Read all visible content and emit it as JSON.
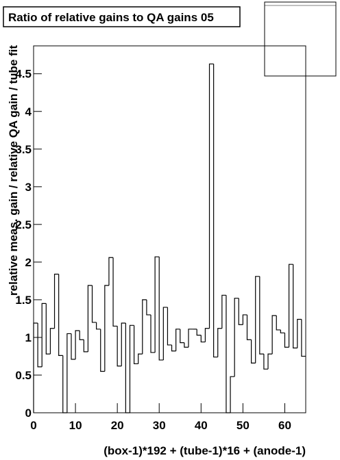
{
  "chart_data": {
    "type": "histogram",
    "title": "Ratio of relative gains to QA gains 05",
    "x_label": "(box-1)*192 + (tube-1)*16 + (anode-1)",
    "y_label": "relative meas. gain / relative QA gain / tube fit",
    "bins": [
      0,
      1,
      2,
      3,
      4,
      5,
      6,
      7,
      8,
      9,
      10,
      11,
      12,
      13,
      14,
      15,
      16,
      17,
      18,
      19,
      20,
      21,
      22,
      23,
      24,
      25,
      26,
      27,
      28,
      29,
      30,
      31,
      32,
      33,
      34,
      35,
      36,
      37,
      38,
      39,
      40,
      41,
      42,
      43,
      44,
      45,
      46,
      47,
      48,
      49,
      50,
      51,
      52,
      53,
      54,
      55,
      56,
      57,
      58,
      59,
      60,
      61,
      62,
      63,
      64,
      65
    ],
    "values": [
      1.19,
      0.61,
      1.45,
      0.78,
      1.12,
      1.84,
      0.76,
      0,
      1.05,
      0.71,
      1.09,
      0.97,
      0.81,
      1.69,
      1.2,
      1.11,
      0.55,
      1.69,
      2.06,
      1.15,
      0.62,
      1.19,
      0,
      1.16,
      0.65,
      0.78,
      1.5,
      1.3,
      0.8,
      2.07,
      0.7,
      1.4,
      0.9,
      0.82,
      1.11,
      0.93,
      0.87,
      1.11,
      1.11,
      1.03,
      0.94,
      1.12,
      4.63,
      0.74,
      1.12,
      1.56,
      0,
      0.48,
      1.52,
      1.17,
      1.3,
      0.97,
      0.66,
      1.81,
      0.78,
      0.58,
      0.78,
      1.29,
      1.1,
      1.06,
      0.87,
      1.97,
      0.86,
      1.24,
      0.75
    ],
    "color": "#000000",
    "xlim": [
      0,
      65
    ],
    "ylim": [
      0,
      4.87
    ],
    "xticks": [
      0,
      10,
      20,
      30,
      40,
      50,
      60
    ],
    "yticks": [
      0,
      0.5,
      1,
      1.5,
      2,
      2.5,
      3,
      3.5,
      4,
      4.5
    ]
  }
}
